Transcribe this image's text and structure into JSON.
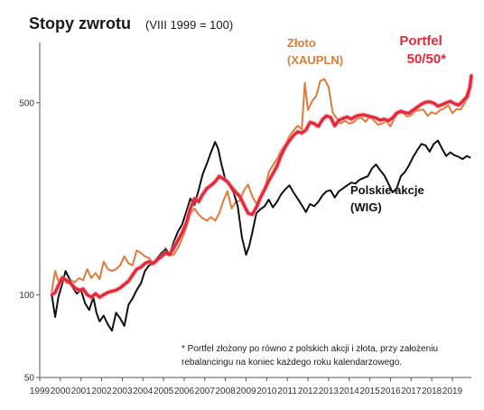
{
  "chart_data": {
    "type": "line",
    "title": "Stopy zwrotu",
    "subtitle": "(VIII 1999 = 100)",
    "y_scale": "log",
    "ylim": [
      50,
      780
    ],
    "xlim": [
      1999.0,
      2019.92
    ],
    "y_ticks": [
      50,
      100,
      500
    ],
    "x_ticks": [
      "1999",
      "2000",
      "2001",
      "2002",
      "2003",
      "2004",
      "2005",
      "2006",
      "2007",
      "2008",
      "2009",
      "2010",
      "2011",
      "2012",
      "2013",
      "2014",
      "2015",
      "2016",
      "2017",
      "2018",
      "2019"
    ],
    "grid": false,
    "legend": "inline labels",
    "footnote_lines": [
      "* Portfel złożony po równo z polskich akcji i złota, przy założeniu",
      "rebalancingu na koniec każdego roku kalendarzowego."
    ],
    "series": [
      {
        "name": "Polskie akcje (WIG)",
        "label_lines": [
          "Polskie akcje",
          "(WIG)"
        ],
        "color": "#111111",
        "x": [
          1999.58,
          1999.75,
          1999.9,
          2000.1,
          2000.25,
          2000.45,
          2000.6,
          2000.8,
          2001.0,
          2001.2,
          2001.4,
          2001.6,
          2001.75,
          2001.9,
          2002.1,
          2002.3,
          2002.5,
          2002.7,
          2002.9,
          2003.1,
          2003.3,
          2003.5,
          2003.7,
          2003.9,
          2004.1,
          2004.3,
          2004.5,
          2004.7,
          2004.9,
          2005.1,
          2005.3,
          2005.5,
          2005.7,
          2005.9,
          2006.1,
          2006.3,
          2006.5,
          2006.7,
          2006.9,
          2007.1,
          2007.3,
          2007.5,
          2007.65,
          2007.8,
          2008.0,
          2008.2,
          2008.4,
          2008.6,
          2008.8,
          2009.0,
          2009.15,
          2009.3,
          2009.5,
          2009.7,
          2009.9,
          2010.1,
          2010.3,
          2010.5,
          2010.7,
          2010.9,
          2011.1,
          2011.3,
          2011.5,
          2011.7,
          2011.9,
          2012.1,
          2012.3,
          2012.5,
          2012.7,
          2012.9,
          2013.1,
          2013.3,
          2013.5,
          2013.7,
          2013.9,
          2014.1,
          2014.3,
          2014.5,
          2014.7,
          2014.9,
          2015.1,
          2015.3,
          2015.5,
          2015.7,
          2015.9,
          2016.1,
          2016.3,
          2016.5,
          2016.7,
          2016.9,
          2017.1,
          2017.3,
          2017.5,
          2017.7,
          2017.9,
          2018.1,
          2018.3,
          2018.5,
          2018.7,
          2018.9,
          2019.1,
          2019.3,
          2019.5,
          2019.7,
          2019.85
        ],
        "values": [
          100,
          83,
          98,
          110,
          122,
          114,
          106,
          101,
          104,
          93,
          88,
          98,
          86,
          80,
          84,
          78,
          74,
          86,
          82,
          77,
          92,
          97,
          104,
          110,
          122,
          128,
          130,
          136,
          142,
          146,
          140,
          156,
          170,
          180,
          200,
          224,
          212,
          240,
          275,
          300,
          330,
          360,
          340,
          300,
          262,
          250,
          235,
          210,
          162,
          140,
          150,
          168,
          198,
          205,
          210,
          222,
          208,
          218,
          232,
          242,
          250,
          236,
          224,
          212,
          200,
          214,
          210,
          218,
          230,
          238,
          240,
          226,
          238,
          244,
          250,
          256,
          254,
          262,
          266,
          270,
          288,
          298,
          284,
          272,
          254,
          236,
          244,
          270,
          280,
          296,
          318,
          336,
          354,
          350,
          332,
          354,
          364,
          340,
          320,
          330,
          322,
          318,
          312,
          320,
          316
        ]
      },
      {
        "name": "Złoto (XAUPLN)",
        "label_lines": [
          "Złoto",
          "(XAUPLN)"
        ],
        "color": "#e07b39",
        "x": [
          1999.58,
          1999.75,
          1999.9,
          2000.1,
          2000.3,
          2000.5,
          2000.7,
          2000.9,
          2001.1,
          2001.3,
          2001.5,
          2001.7,
          2001.9,
          2002.1,
          2002.3,
          2002.5,
          2002.7,
          2002.9,
          2003.1,
          2003.3,
          2003.5,
          2003.7,
          2003.9,
          2004.1,
          2004.3,
          2004.5,
          2004.7,
          2004.9,
          2005.1,
          2005.3,
          2005.5,
          2005.7,
          2005.9,
          2006.1,
          2006.3,
          2006.5,
          2006.7,
          2006.9,
          2007.1,
          2007.3,
          2007.5,
          2007.7,
          2007.9,
          2008.1,
          2008.3,
          2008.5,
          2008.7,
          2008.9,
          2009.1,
          2009.3,
          2009.5,
          2009.7,
          2009.9,
          2010.1,
          2010.3,
          2010.5,
          2010.7,
          2010.9,
          2011.1,
          2011.3,
          2011.5,
          2011.7,
          2011.85,
          2012.0,
          2012.2,
          2012.4,
          2012.6,
          2012.8,
          2013.0,
          2013.2,
          2013.4,
          2013.6,
          2013.8,
          2014.0,
          2014.2,
          2014.4,
          2014.6,
          2014.8,
          2015.0,
          2015.2,
          2015.4,
          2015.6,
          2015.8,
          2016.0,
          2016.2,
          2016.4,
          2016.6,
          2016.8,
          2017.0,
          2017.2,
          2017.4,
          2017.6,
          2017.8,
          2018.0,
          2018.2,
          2018.4,
          2018.6,
          2018.8,
          2019.0,
          2019.2,
          2019.4,
          2019.6,
          2019.8,
          2019.9
        ],
        "values": [
          103,
          122,
          112,
          117,
          110,
          113,
          111,
          115,
          113,
          124,
          115,
          120,
          114,
          132,
          124,
          122,
          124,
          128,
          138,
          130,
          128,
          145,
          142,
          138,
          136,
          130,
          133,
          138,
          148,
          140,
          140,
          148,
          160,
          175,
          198,
          206,
          196,
          190,
          186,
          192,
          186,
          198,
          220,
          238,
          206,
          218,
          220,
          240,
          252,
          228,
          215,
          226,
          240,
          280,
          296,
          312,
          336,
          352,
          378,
          396,
          412,
          400,
          590,
          470,
          506,
          530,
          600,
          610,
          570,
          460,
          438,
          420,
          430,
          420,
          424,
          438,
          440,
          426,
          446,
          430,
          416,
          420,
          428,
          410,
          440,
          462,
          460,
          446,
          450,
          466,
          470,
          472,
          448,
          462,
          455,
          470,
          476,
          490,
          458,
          474,
          472,
          500,
          530,
          622
        ]
      },
      {
        "name": "Portfel 50/50*",
        "label_lines": [
          "Portfel",
          "50/50*"
        ],
        "color": "#e5293b",
        "x": [
          1999.58,
          1999.75,
          1999.9,
          2000.1,
          2000.3,
          2000.5,
          2000.7,
          2000.9,
          2001.1,
          2001.3,
          2001.5,
          2001.7,
          2001.9,
          2002.1,
          2002.3,
          2002.5,
          2002.7,
          2002.9,
          2003.1,
          2003.3,
          2003.5,
          2003.7,
          2003.9,
          2004.1,
          2004.3,
          2004.5,
          2004.7,
          2004.9,
          2005.1,
          2005.3,
          2005.5,
          2005.7,
          2005.9,
          2006.1,
          2006.3,
          2006.5,
          2006.7,
          2006.9,
          2007.1,
          2007.3,
          2007.5,
          2007.7,
          2007.9,
          2008.1,
          2008.3,
          2008.5,
          2008.7,
          2008.9,
          2009.1,
          2009.3,
          2009.5,
          2009.7,
          2009.9,
          2010.1,
          2010.3,
          2010.5,
          2010.7,
          2010.9,
          2011.1,
          2011.3,
          2011.5,
          2011.7,
          2011.9,
          2012.1,
          2012.3,
          2012.5,
          2012.7,
          2012.9,
          2013.1,
          2013.3,
          2013.5,
          2013.7,
          2013.9,
          2014.1,
          2014.3,
          2014.5,
          2014.7,
          2014.9,
          2015.1,
          2015.3,
          2015.5,
          2015.7,
          2015.9,
          2016.1,
          2016.3,
          2016.5,
          2016.7,
          2016.9,
          2017.1,
          2017.3,
          2017.5,
          2017.7,
          2017.9,
          2018.1,
          2018.3,
          2018.5,
          2018.7,
          2018.9,
          2019.1,
          2019.3,
          2019.5,
          2019.7,
          2019.85,
          2019.92
        ],
        "values": [
          100,
          102,
          108,
          115,
          113,
          110,
          106,
          104,
          105,
          100,
          98,
          101,
          98,
          100,
          102,
          103,
          104,
          106,
          109,
          112,
          118,
          124,
          126,
          130,
          132,
          130,
          134,
          138,
          142,
          140,
          148,
          158,
          168,
          182,
          206,
          224,
          218,
          232,
          244,
          250,
          258,
          270,
          264,
          258,
          246,
          236,
          228,
          212,
          198,
          196,
          208,
          226,
          242,
          260,
          276,
          294,
          322,
          345,
          364,
          380,
          392,
          388,
          398,
          424,
          420,
          410,
          434,
          448,
          442,
          412,
          432,
          438,
          444,
          436,
          446,
          450,
          452,
          448,
          444,
          440,
          432,
          436,
          430,
          440,
          458,
          466,
          460,
          458,
          470,
          482,
          494,
          502,
          504,
          498,
          486,
          492,
          500,
          506,
          496,
          490,
          506,
          526,
          570,
          628
        ]
      }
    ]
  }
}
